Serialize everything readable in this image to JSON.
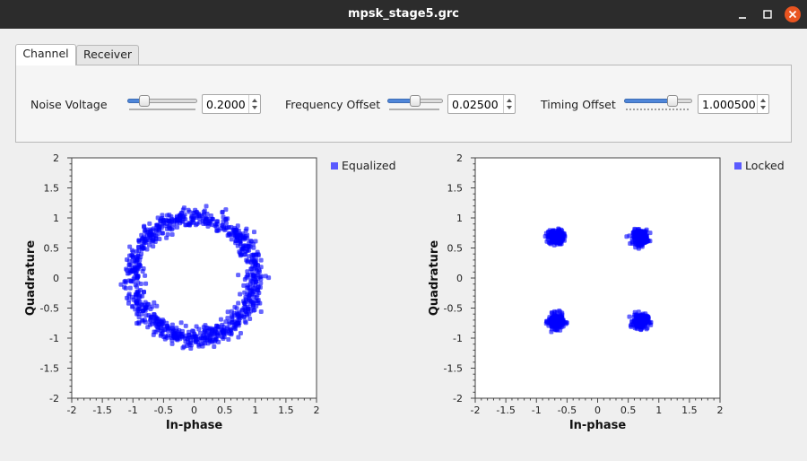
{
  "window": {
    "title": "mpsk_stage5.grc"
  },
  "tabs": [
    {
      "label": "Channel",
      "active": true
    },
    {
      "label": "Receiver",
      "active": false
    }
  ],
  "controls": [
    {
      "label": "Noise Voltage",
      "value": "0.2000",
      "slider_fraction": 0.2
    },
    {
      "label": "Frequency Offset",
      "value": "0.02500",
      "slider_fraction": 0.5
    },
    {
      "label": "Timing Offset",
      "value": "1.000500",
      "slider_fraction": 0.75
    }
  ],
  "colors": {
    "points": "#0000ff",
    "legend": "#5a5aff",
    "titlebar": "#2c2c2c",
    "close": "#e95420"
  },
  "chart_data": [
    {
      "type": "scatter",
      "title": "",
      "xlabel": "In-phase",
      "ylabel": "Quadrature",
      "xlim": [
        -2,
        2
      ],
      "ylim": [
        -2,
        2
      ],
      "xticks": [
        "-2",
        "-1.5",
        "-1",
        "-0.5",
        "0",
        "0.5",
        "1",
        "1.5",
        "2"
      ],
      "yticks": [
        "2",
        "1.5",
        "1",
        "0.5",
        "0",
        "-0.5",
        "-1",
        "-1.5",
        "-2"
      ],
      "legend_position": "right",
      "series": [
        {
          "name": "Equalized",
          "shape": "ring",
          "center": [
            0,
            0
          ],
          "radius": 1.0,
          "spread": 0.08
        }
      ]
    },
    {
      "type": "scatter",
      "title": "",
      "xlabel": "In-phase",
      "ylabel": "Quadrature",
      "xlim": [
        -2,
        2
      ],
      "ylim": [
        -2,
        2
      ],
      "xticks": [
        "-2",
        "-1.5",
        "-1",
        "-0.5",
        "0",
        "0.5",
        "1",
        "1.5",
        "2"
      ],
      "yticks": [
        "2",
        "1.5",
        "1",
        "0.5",
        "0",
        "-0.5",
        "-1",
        "-1.5",
        "-2"
      ],
      "legend_position": "right",
      "series": [
        {
          "name": "Locked",
          "shape": "clusters",
          "centers": [
            [
              -0.68,
              0.68
            ],
            [
              0.7,
              0.68
            ],
            [
              -0.68,
              -0.72
            ],
            [
              0.7,
              -0.72
            ]
          ],
          "spread": 0.06
        }
      ]
    }
  ]
}
